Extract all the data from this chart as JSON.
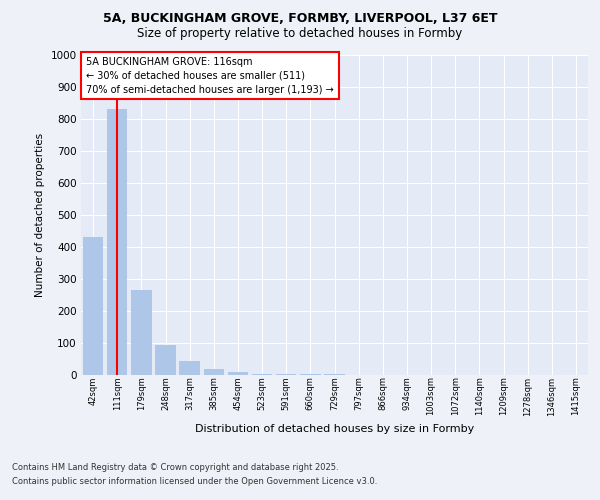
{
  "title_line1": "5A, BUCKINGHAM GROVE, FORMBY, LIVERPOOL, L37 6ET",
  "title_line2": "Size of property relative to detached houses in Formby",
  "xlabel": "Distribution of detached houses by size in Formby",
  "ylabel": "Number of detached properties",
  "categories": [
    "42sqm",
    "111sqm",
    "179sqm",
    "248sqm",
    "317sqm",
    "385sqm",
    "454sqm",
    "523sqm",
    "591sqm",
    "660sqm",
    "729sqm",
    "797sqm",
    "866sqm",
    "934sqm",
    "1003sqm",
    "1072sqm",
    "1140sqm",
    "1209sqm",
    "1278sqm",
    "1346sqm",
    "1415sqm"
  ],
  "values": [
    430,
    830,
    265,
    95,
    45,
    18,
    8,
    4,
    3,
    2,
    2,
    1,
    1,
    1,
    1,
    0,
    0,
    0,
    0,
    0,
    0
  ],
  "bar_color": "#aec6e8",
  "vline_color": "red",
  "box_edge_color": "red",
  "ylim": [
    0,
    1000
  ],
  "yticks": [
    0,
    100,
    200,
    300,
    400,
    500,
    600,
    700,
    800,
    900,
    1000
  ],
  "footer_line1": "Contains HM Land Registry data © Crown copyright and database right 2025.",
  "footer_line2": "Contains public sector information licensed under the Open Government Licence v3.0.",
  "bg_color": "#eef2f8",
  "plot_bg_color": "#e4eaf6"
}
